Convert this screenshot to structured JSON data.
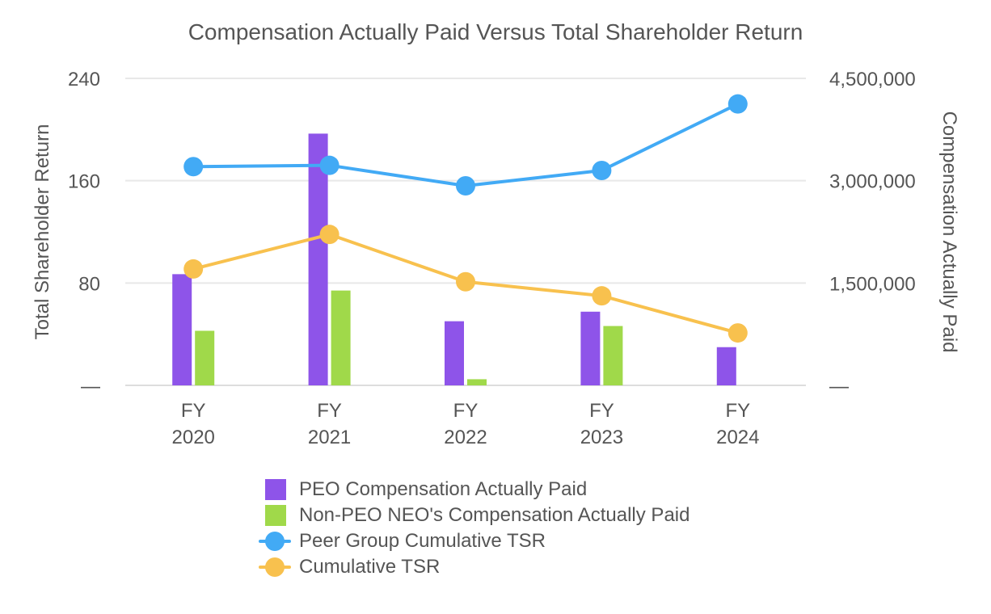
{
  "chart_data": {
    "type": "bar",
    "title": "Compensation Actually Paid Versus Total Shareholder Return",
    "categories": [
      "FY 2020",
      "FY 2021",
      "FY 2022",
      "FY 2023",
      "FY 2024"
    ],
    "category_lines": [
      [
        "FY",
        "2020"
      ],
      [
        "FY",
        "2021"
      ],
      [
        "FY",
        "2022"
      ],
      [
        "FY",
        "2023"
      ],
      [
        "FY",
        "2024"
      ]
    ],
    "left_axis": {
      "label": "Total Shareholder Return",
      "ylim": [
        0,
        240
      ],
      "ticks": [
        0,
        80,
        160,
        240
      ],
      "tick_labels": [
        "—",
        "80",
        "160",
        "240"
      ]
    },
    "right_axis": {
      "label": "Compensation Actually Paid",
      "ylim": [
        0,
        4500000
      ],
      "ticks": [
        0,
        1500000,
        3000000,
        4500000
      ],
      "tick_labels": [
        "—",
        "1,500,000",
        "3,000,000",
        "4,500,000"
      ]
    },
    "series": [
      {
        "name": "PEO Compensation Actually Paid",
        "type": "bar",
        "axis": "right",
        "color": "#8e54e9",
        "values": [
          1630000,
          3690000,
          940000,
          1080000,
          560000
        ]
      },
      {
        "name": "Non-PEO NEO's Compensation Actually Paid",
        "type": "bar",
        "axis": "right",
        "color": "#a0d94a",
        "values": [
          800000,
          1390000,
          90000,
          870000,
          0
        ]
      },
      {
        "name": "Peer Group Cumulative TSR",
        "type": "line",
        "axis": "left",
        "color": "#42aaf5",
        "values": [
          171,
          172,
          156,
          168,
          220
        ]
      },
      {
        "name": "Cumulative TSR",
        "type": "line",
        "axis": "left",
        "color": "#f8c14e",
        "values": [
          91,
          118,
          81,
          70,
          41
        ]
      }
    ],
    "grid": true,
    "legend_position": "bottom"
  }
}
